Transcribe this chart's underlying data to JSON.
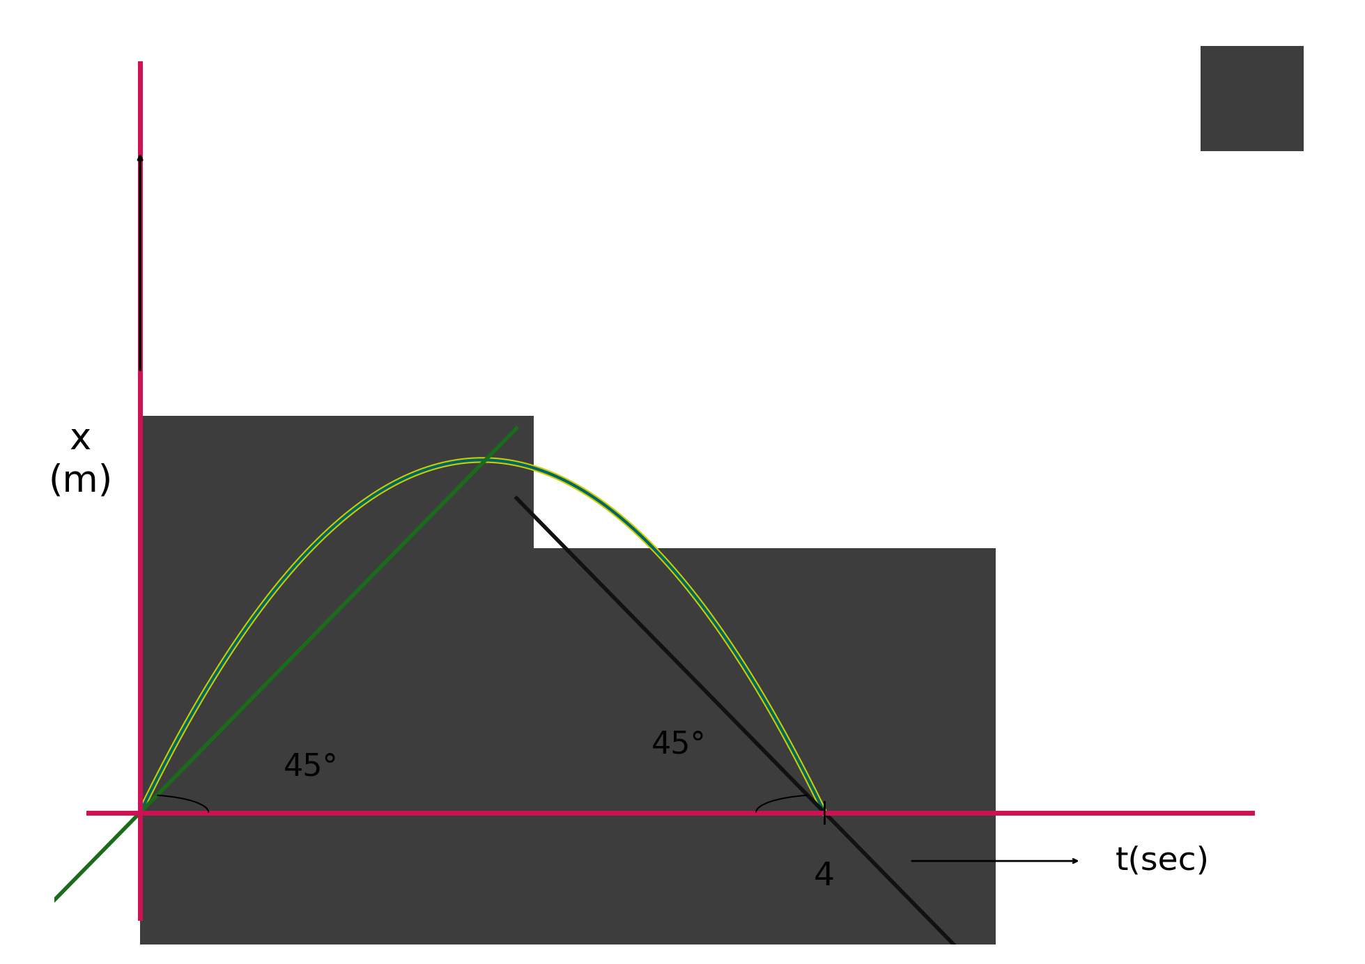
{
  "fig_bg": "#ffffff",
  "plot_bg": "#ffffff",
  "dark_panel_color": "#3d3d3d",
  "axis_color": "#cc1155",
  "parabola_yellow": "#cccc00",
  "parabola_teal": "#006666",
  "parabola_green": "#228B22",
  "tangent_left_color": "#1a6b1a",
  "tangent_right_color": "#111111",
  "axis_lw": 5,
  "parabola_lw_yellow": 6,
  "parabola_lw_teal": 3,
  "tangent_lw": 3,
  "ylabel": "x\n(m)",
  "xlabel": "t(sec)",
  "t4_label": "4",
  "angle_label": "45°",
  "small_rect_top_right_color": "#3d3d3d",
  "xlim": [
    -0.5,
    7.0
  ],
  "ylim": [
    -1.5,
    9.0
  ]
}
